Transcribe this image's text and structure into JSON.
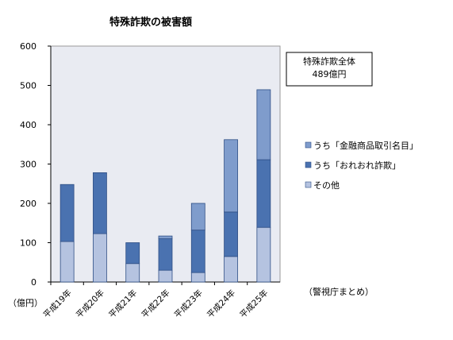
{
  "chart_data": {
    "type": "bar",
    "stacked": true,
    "title": "特殊詐欺の被害額",
    "ylabel": "（億円）",
    "ylim": [
      0,
      600
    ],
    "yticks": [
      0,
      100,
      200,
      300,
      400,
      500,
      600
    ],
    "categories": [
      "平成19年",
      "平成20年",
      "平成21年",
      "平成22年",
      "平成23年",
      "平成24年",
      "平成25年"
    ],
    "series": [
      {
        "name": "その他",
        "values": [
          103,
          123,
          47,
          30,
          24,
          65,
          139
        ],
        "color": "#b5c3e0"
      },
      {
        "name": "うち「おれおれ詐欺」",
        "values": [
          145,
          155,
          53,
          80,
          108,
          113,
          172
        ],
        "color": "#4a72b0"
      },
      {
        "name": "うち「金融商品取引名目」",
        "values": [
          0,
          0,
          0,
          7,
          68,
          184,
          178
        ],
        "color": "#7f9ccc"
      }
    ],
    "legend_position": "right",
    "grid": false,
    "plot_background": "#e9ebf2",
    "annotations": {
      "total_box_line1": "特殊詐欺全体",
      "total_box_line2": "489億円",
      "source": "（警視庁まとめ）"
    }
  }
}
